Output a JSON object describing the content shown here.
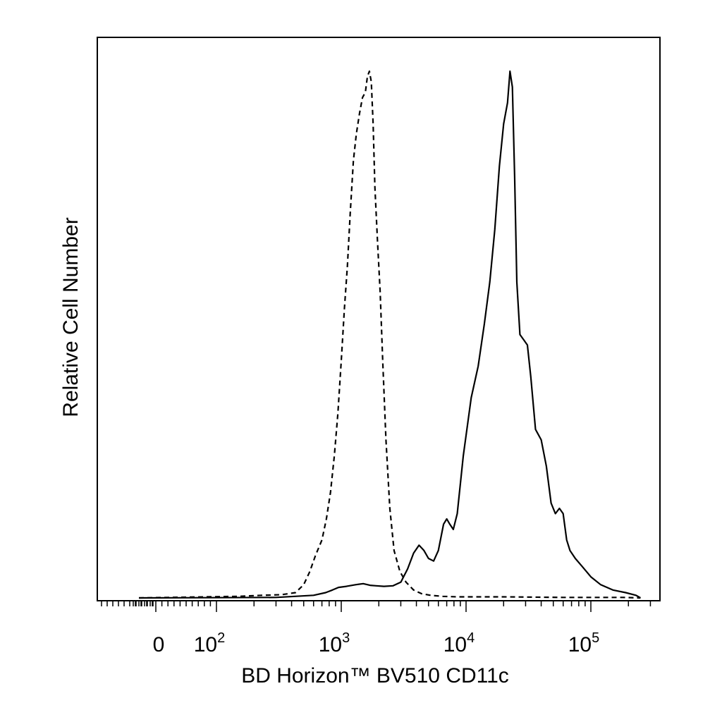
{
  "chart_data": {
    "type": "line",
    "xlabel": "BD Horizon™ BV510 CD11c",
    "ylabel": "Relative Cell Number",
    "x_scale": "biexponential",
    "xlim": [
      -60,
      250000
    ],
    "ylim": [
      0,
      1.0
    ],
    "x_ticks": [
      {
        "value": 0,
        "base": "0",
        "exp": ""
      },
      {
        "value": 100,
        "base": "10",
        "exp": "2"
      },
      {
        "value": 1000,
        "base": "10",
        "exp": "3"
      },
      {
        "value": 10000,
        "base": "10",
        "exp": "4"
      },
      {
        "value": 100000,
        "base": "10",
        "exp": "5"
      }
    ],
    "grid": false,
    "series": [
      {
        "style": "dashed",
        "color": "#000000",
        "x": [
          -60,
          150,
          230,
          330,
          430,
          500,
          560,
          620,
          700,
          760,
          820,
          880,
          940,
          1000,
          1060,
          1120,
          1180,
          1250,
          1320,
          1400,
          1480,
          1560,
          1620,
          1680,
          1740,
          1800,
          1860,
          1950,
          2050,
          2150,
          2280,
          2450,
          2650,
          2950,
          3300,
          3800,
          4400,
          5200,
          6500,
          8500,
          20000,
          60000,
          120000,
          180000,
          250000
        ],
        "y": [
          0,
          0.003,
          0.005,
          0.006,
          0.01,
          0.025,
          0.05,
          0.08,
          0.11,
          0.15,
          0.2,
          0.27,
          0.35,
          0.45,
          0.55,
          0.63,
          0.73,
          0.83,
          0.88,
          0.92,
          0.95,
          0.96,
          0.99,
          1.0,
          0.98,
          0.9,
          0.78,
          0.68,
          0.58,
          0.45,
          0.3,
          0.17,
          0.09,
          0.05,
          0.03,
          0.015,
          0.008,
          0.005,
          0.003,
          0.002,
          0.002,
          0.001,
          0.001,
          0.001,
          0
        ]
      },
      {
        "style": "solid",
        "color": "#000000",
        "x": [
          -60,
          300,
          600,
          750,
          850,
          950,
          1100,
          1300,
          1500,
          1700,
          1900,
          2200,
          2600,
          3000,
          3400,
          3800,
          4200,
          4600,
          5000,
          5500,
          6000,
          6600,
          7000,
          7400,
          7900,
          8500,
          9500,
          11000,
          12500,
          14000,
          15500,
          17000,
          18500,
          20000,
          21500,
          22500,
          23500,
          24500,
          25500,
          27000,
          29000,
          31000,
          33000,
          36000,
          40000,
          44000,
          48000,
          52000,
          56000,
          60000,
          64000,
          68000,
          75000,
          85000,
          100000,
          120000,
          150000,
          190000,
          230000,
          250000
        ],
        "y": [
          0,
          0.001,
          0.005,
          0.01,
          0.015,
          0.02,
          0.022,
          0.025,
          0.027,
          0.024,
          0.023,
          0.022,
          0.023,
          0.03,
          0.055,
          0.085,
          0.1,
          0.09,
          0.075,
          0.07,
          0.09,
          0.14,
          0.15,
          0.14,
          0.13,
          0.16,
          0.27,
          0.38,
          0.44,
          0.52,
          0.6,
          0.7,
          0.82,
          0.9,
          0.94,
          1.0,
          0.97,
          0.8,
          0.6,
          0.5,
          0.49,
          0.48,
          0.42,
          0.32,
          0.3,
          0.25,
          0.18,
          0.16,
          0.17,
          0.16,
          0.11,
          0.09,
          0.075,
          0.06,
          0.04,
          0.025,
          0.015,
          0.01,
          0.005,
          0
        ]
      }
    ]
  }
}
